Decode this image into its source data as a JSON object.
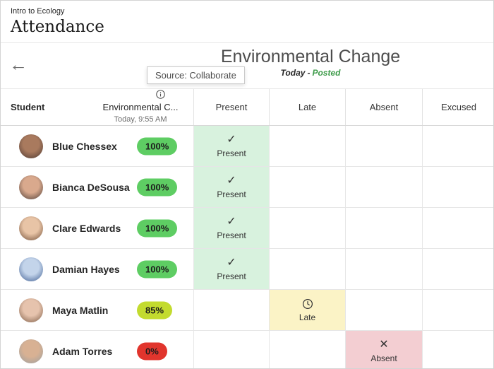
{
  "page": {
    "course_label": "Intro to Ecology",
    "title": "Attendance"
  },
  "meeting": {
    "title": "Environmental Change",
    "date_label": "Today",
    "separator": "-",
    "status_label": "Posted",
    "tooltip": "Source: Collaborate"
  },
  "table": {
    "student_header": "Student",
    "meeting_column": {
      "title": "Environmental C...",
      "subtitle": "Today, 9:55 AM"
    },
    "status_columns": [
      {
        "key": "present",
        "label": "Present"
      },
      {
        "key": "late",
        "label": "Late"
      },
      {
        "key": "absent",
        "label": "Absent"
      },
      {
        "key": "excused",
        "label": "Excused"
      }
    ],
    "rows": [
      {
        "name": "Blue Chessex",
        "score": "100%",
        "score_color": "#5ecd63",
        "status": "present",
        "avatar_colors": [
          "#4a3731",
          "#a97a5e"
        ]
      },
      {
        "name": "Bianca DeSousa",
        "score": "100%",
        "score_color": "#5ecd63",
        "status": "present",
        "avatar_colors": [
          "#4a3a34",
          "#d9a98d"
        ]
      },
      {
        "name": "Clare Edwards",
        "score": "100%",
        "score_color": "#5ecd63",
        "status": "present",
        "avatar_colors": [
          "#6d4a33",
          "#e8c4a6"
        ]
      },
      {
        "name": "Damian Hayes",
        "score": "100%",
        "score_color": "#5ecd63",
        "status": "present",
        "avatar_colors": [
          "#3b5a8f",
          "#c3d4ea"
        ]
      },
      {
        "name": "Maya Matlin",
        "score": "85%",
        "score_color": "#c3db2f",
        "status": "late",
        "avatar_colors": [
          "#7a5a44",
          "#e6c3ad"
        ]
      },
      {
        "name": "Adam Torres",
        "score": "0%",
        "score_color": "#e1352d",
        "status": "absent",
        "avatar_colors": [
          "#9aa0a2",
          "#d8b193"
        ]
      }
    ]
  },
  "statuses": {
    "present": {
      "label": "Present",
      "icon": "check-icon",
      "glyph": "✓",
      "bg": "#d8f2de"
    },
    "late": {
      "label": "Late",
      "icon": "clock-icon",
      "glyph": "",
      "bg": "#fbf3c6"
    },
    "absent": {
      "label": "Absent",
      "icon": "x-icon",
      "glyph": "✕",
      "bg": "#f3ced2"
    },
    "excused": {
      "label": "Excused"
    }
  },
  "colors": {
    "posted_green": "#3d9b49",
    "pill_green": "#5ecd63",
    "pill_lime": "#c3db2f",
    "pill_red": "#e1352d"
  }
}
